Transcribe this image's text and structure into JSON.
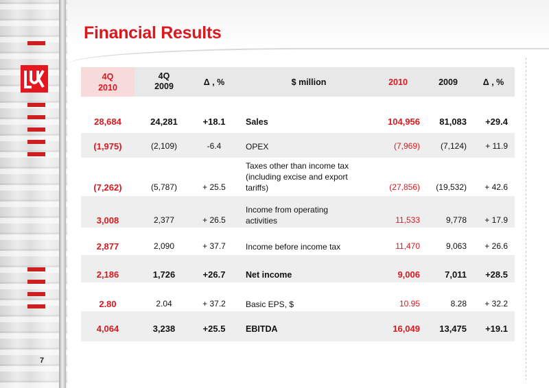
{
  "title": "Financial Results",
  "page_number": "7",
  "colors": {
    "accent": "#d71920",
    "shade": "#eeeeee",
    "header_highlight": "#f7dada"
  },
  "logo": {
    "icon": "lukoil-logo-icon"
  },
  "table": {
    "headers": {
      "q4_2010": [
        "4Q",
        "2010"
      ],
      "q4_2009": [
        "4Q",
        "2009"
      ],
      "delta_q": "Δ , %",
      "label": "$ million",
      "y2010": "2010",
      "y2009": "2009",
      "delta_y": "Δ , %"
    },
    "rows": [
      {
        "q4_2010": "28,684",
        "q4_2009": "24,281",
        "delta_q": "+18.1",
        "label": [
          "Sales"
        ],
        "y2010": "104,956",
        "y2009": "81,083",
        "delta_y": "+29.4",
        "bold": true
      },
      {
        "q4_2010": "(1,975)",
        "q4_2009": "(2,109)",
        "delta_q": "-6.4",
        "label": [
          "OPEX"
        ],
        "y2010": "(7,969)",
        "y2009": "(7,124)",
        "delta_y": "+ 11.9",
        "bold": false
      },
      {
        "q4_2010": "(7,262)",
        "q4_2009": "(5,787)",
        "delta_q": "+ 25.5",
        "label": [
          "Taxes other than income tax",
          "(including excise and export",
          "tariffs)"
        ],
        "y2010": "(27,856)",
        "y2009": "(19,532)",
        "delta_y": "+ 42.6",
        "bold": false
      },
      {
        "q4_2010": "3,008",
        "q4_2009": "2,377",
        "delta_q": "+ 26.5",
        "label": [
          "Income from operating",
          "activities"
        ],
        "y2010": "11,533",
        "y2009": "9,778",
        "delta_y": "+ 17.9",
        "bold": false
      },
      {
        "q4_2010": "2,877",
        "q4_2009": "2,090",
        "delta_q": "+ 37.7",
        "label": [
          "Income before income tax"
        ],
        "y2010": "11,470",
        "y2009": "9,063",
        "delta_y": "+ 26.6",
        "bold": false
      },
      {
        "q4_2010": "2,186",
        "q4_2009": "1,726",
        "delta_q": "+26.7",
        "label": [
          "Net income"
        ],
        "y2010": "9,006",
        "y2009": "7,011",
        "delta_y": "+28.5",
        "bold": true
      },
      {
        "q4_2010": "2.80",
        "q4_2009": "2.04",
        "delta_q": "+ 37.2",
        "label": [
          "Basic EPS, $"
        ],
        "y2010": "10.95",
        "y2009": "8.28",
        "delta_y": "+ 32.2",
        "bold": false
      },
      {
        "q4_2010": "4,064",
        "q4_2009": "3,238",
        "delta_q": "+25.5",
        "label": [
          "EBITDA"
        ],
        "y2010": "16,049",
        "y2009": "13,475",
        "delta_y": "+19.1",
        "bold": true
      }
    ]
  }
}
